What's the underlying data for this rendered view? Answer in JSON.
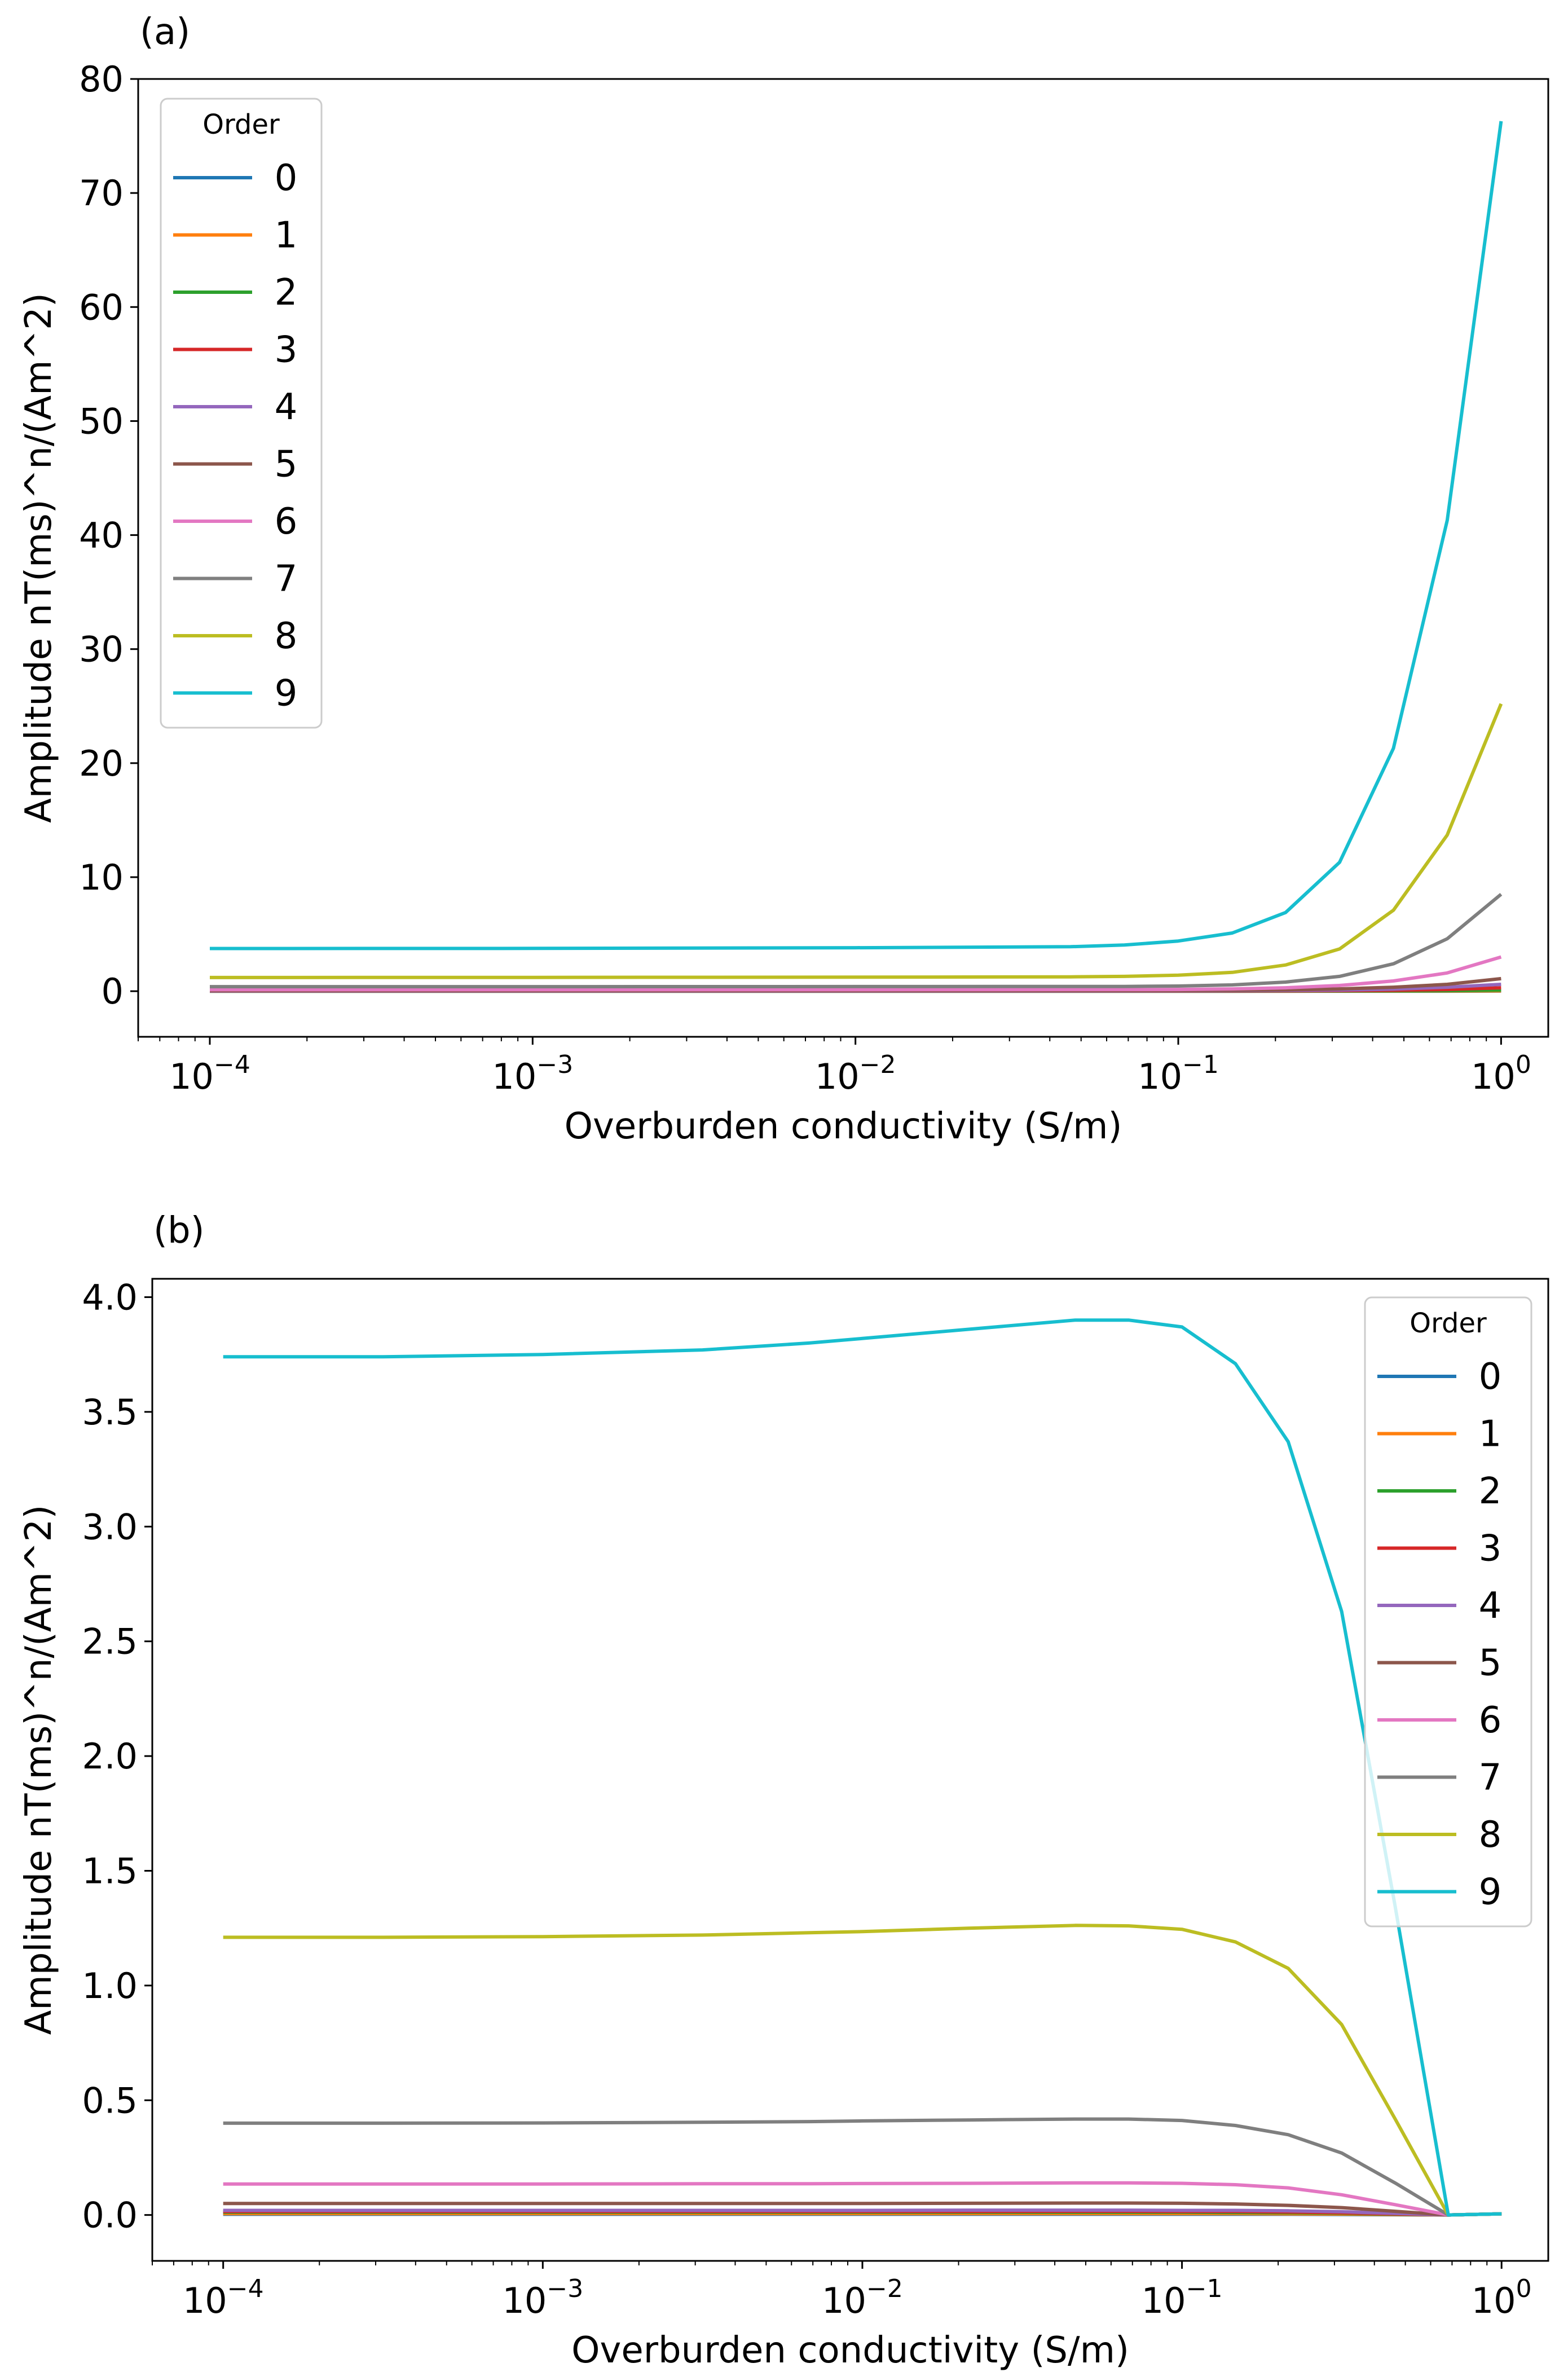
{
  "chart_data": [
    {
      "type": "line",
      "panel_label": "(a)",
      "xlabel": "Overburden conductivity (S/m)",
      "ylabel": "Amplitude nT(ms)^n/(Am^2)",
      "xscale": "log",
      "xlim": [
        6e-05,
        1.4
      ],
      "ylim": [
        -4,
        80
      ],
      "xticks": [
        {
          "value": 0.0001,
          "base": "10",
          "exp": "−4"
        },
        {
          "value": 0.001,
          "base": "10",
          "exp": "−3"
        },
        {
          "value": 0.01,
          "base": "10",
          "exp": "−2"
        },
        {
          "value": 0.1,
          "base": "10",
          "exp": "−1"
        },
        {
          "value": 1,
          "base": "10",
          "exp": "0"
        }
      ],
      "yticks": [
        {
          "value": 0,
          "label": "0"
        },
        {
          "value": 10,
          "label": "10"
        },
        {
          "value": 20,
          "label": "20"
        },
        {
          "value": 30,
          "label": "30"
        },
        {
          "value": 40,
          "label": "40"
        },
        {
          "value": 50,
          "label": "50"
        },
        {
          "value": 60,
          "label": "60"
        },
        {
          "value": 70,
          "label": "70"
        },
        {
          "value": 80,
          "label": "80"
        }
      ],
      "legend": {
        "title": "Order",
        "placement": "upper-left"
      },
      "x": [
        0.0001,
        0.001,
        0.01,
        0.0464,
        0.0681,
        0.1,
        0.147,
        0.215,
        0.316,
        0.464,
        0.681,
        1.0
      ],
      "series": [
        {
          "name": "0",
          "color": "#1f77b4",
          "values": [
            0.0,
            0.0,
            0.0,
            0.0,
            0.0,
            0.0,
            0.0,
            0.0,
            0.0,
            0.0,
            0.0,
            0.01
          ]
        },
        {
          "name": "1",
          "color": "#ff7f0e",
          "values": [
            0.0,
            0.0,
            0.0,
            0.0,
            0.0,
            0.0,
            0.0,
            0.0,
            0.01,
            0.01,
            0.02,
            0.03
          ]
        },
        {
          "name": "2",
          "color": "#2ca02c",
          "values": [
            0.0,
            0.0,
            0.0,
            0.0,
            0.0,
            0.0,
            0.0,
            0.01,
            0.02,
            0.03,
            0.05,
            0.1
          ]
        },
        {
          "name": "3",
          "color": "#d62728",
          "values": [
            0.01,
            0.01,
            0.01,
            0.01,
            0.01,
            0.01,
            0.02,
            0.03,
            0.05,
            0.08,
            0.15,
            0.3
          ]
        },
        {
          "name": "4",
          "color": "#9467bd",
          "values": [
            0.02,
            0.02,
            0.02,
            0.02,
            0.02,
            0.03,
            0.04,
            0.06,
            0.1,
            0.18,
            0.35,
            0.6
          ]
        },
        {
          "name": "5",
          "color": "#8c564b",
          "values": [
            0.05,
            0.05,
            0.05,
            0.05,
            0.05,
            0.06,
            0.08,
            0.12,
            0.2,
            0.35,
            0.6,
            1.1
          ]
        },
        {
          "name": "6",
          "color": "#e377c2",
          "values": [
            0.13,
            0.13,
            0.13,
            0.14,
            0.14,
            0.15,
            0.2,
            0.3,
            0.5,
            0.9,
            1.6,
            3.0
          ]
        },
        {
          "name": "7",
          "color": "#7f7f7f",
          "values": [
            0.4,
            0.4,
            0.41,
            0.42,
            0.42,
            0.45,
            0.55,
            0.8,
            1.3,
            2.4,
            4.6,
            8.5
          ]
        },
        {
          "name": "8",
          "color": "#bcbd22",
          "values": [
            1.2,
            1.21,
            1.23,
            1.26,
            1.3,
            1.4,
            1.65,
            2.3,
            3.7,
            7.1,
            13.7,
            25.2
          ]
        },
        {
          "name": "9",
          "color": "#17becf",
          "values": [
            3.74,
            3.75,
            3.81,
            3.9,
            4.05,
            4.4,
            5.1,
            6.9,
            11.3,
            21.3,
            41.3,
            76.3
          ]
        }
      ]
    },
    {
      "type": "line",
      "panel_label": "(b)",
      "xlabel": "Overburden conductivity (S/m)",
      "ylabel": "Amplitude nT(ms)^n/(Am^2)",
      "xscale": "log",
      "xlim": [
        6e-05,
        1.4
      ],
      "ylim": [
        -0.2,
        4.08
      ],
      "xticks": [
        {
          "value": 0.0001,
          "base": "10",
          "exp": "−4"
        },
        {
          "value": 0.001,
          "base": "10",
          "exp": "−3"
        },
        {
          "value": 0.01,
          "base": "10",
          "exp": "−2"
        },
        {
          "value": 0.1,
          "base": "10",
          "exp": "−1"
        },
        {
          "value": 1,
          "base": "10",
          "exp": "0"
        }
      ],
      "yticks": [
        {
          "value": 0.0,
          "label": "0.0"
        },
        {
          "value": 0.5,
          "label": "0.5"
        },
        {
          "value": 1.0,
          "label": "1.0"
        },
        {
          "value": 1.5,
          "label": "1.5"
        },
        {
          "value": 2.0,
          "label": "2.0"
        },
        {
          "value": 2.5,
          "label": "2.5"
        },
        {
          "value": 3.0,
          "label": "3.0"
        },
        {
          "value": 3.5,
          "label": "3.5"
        },
        {
          "value": 4.0,
          "label": "4.0"
        }
      ],
      "legend": {
        "title": "Order",
        "placement": "upper-right"
      },
      "x": [
        0.0001,
        0.000316,
        0.001,
        0.00316,
        0.00681,
        0.01,
        0.0215,
        0.0464,
        0.0681,
        0.1,
        0.147,
        0.215,
        0.316,
        0.464,
        0.681,
        1.0
      ],
      "series": [
        {
          "name": "0",
          "color": "#1f77b4",
          "values": [
            0.003,
            0.003,
            0.003,
            0.003,
            0.003,
            0.003,
            0.003,
            0.003,
            0.003,
            0.003,
            0.003,
            0.003,
            0.002,
            0.001,
            0.0,
            0.005
          ]
        },
        {
          "name": "1",
          "color": "#ff7f0e",
          "values": [
            0.006,
            0.006,
            0.006,
            0.006,
            0.006,
            0.006,
            0.006,
            0.006,
            0.006,
            0.006,
            0.006,
            0.005,
            0.004,
            0.002,
            0.0,
            0.005
          ]
        },
        {
          "name": "2",
          "color": "#2ca02c",
          "values": [
            0.012,
            0.012,
            0.012,
            0.012,
            0.012,
            0.012,
            0.012,
            0.012,
            0.012,
            0.012,
            0.011,
            0.01,
            0.008,
            0.004,
            0.0,
            0.005
          ]
        },
        {
          "name": "3",
          "color": "#d62728",
          "values": [
            0.015,
            0.015,
            0.015,
            0.015,
            0.015,
            0.015,
            0.015,
            0.016,
            0.016,
            0.015,
            0.015,
            0.013,
            0.01,
            0.005,
            0.0,
            0.005
          ]
        },
        {
          "name": "4",
          "color": "#9467bd",
          "values": [
            0.02,
            0.02,
            0.02,
            0.02,
            0.02,
            0.02,
            0.021,
            0.021,
            0.021,
            0.02,
            0.02,
            0.018,
            0.014,
            0.007,
            0.0,
            0.005
          ]
        },
        {
          "name": "5",
          "color": "#8c564b",
          "values": [
            0.05,
            0.05,
            0.05,
            0.05,
            0.05,
            0.05,
            0.051,
            0.052,
            0.052,
            0.051,
            0.048,
            0.042,
            0.032,
            0.016,
            0.0,
            0.005
          ]
        },
        {
          "name": "6",
          "color": "#e377c2",
          "values": [
            0.135,
            0.135,
            0.135,
            0.136,
            0.136,
            0.137,
            0.138,
            0.14,
            0.14,
            0.138,
            0.132,
            0.118,
            0.088,
            0.045,
            0.0,
            0.005
          ]
        },
        {
          "name": "7",
          "color": "#7f7f7f",
          "values": [
            0.4,
            0.4,
            0.401,
            0.404,
            0.407,
            0.41,
            0.414,
            0.418,
            0.418,
            0.412,
            0.39,
            0.35,
            0.27,
            0.14,
            0.0,
            0.005
          ]
        },
        {
          "name": "8",
          "color": "#bcbd22",
          "values": [
            1.21,
            1.21,
            1.213,
            1.22,
            1.23,
            1.235,
            1.25,
            1.262,
            1.26,
            1.245,
            1.19,
            1.075,
            0.83,
            0.42,
            0.0,
            0.005
          ]
        },
        {
          "name": "9",
          "color": "#17becf",
          "values": [
            3.74,
            3.74,
            3.75,
            3.77,
            3.8,
            3.82,
            3.86,
            3.9,
            3.9,
            3.87,
            3.71,
            3.37,
            2.63,
            1.35,
            0.0,
            0.005
          ]
        }
      ]
    }
  ]
}
